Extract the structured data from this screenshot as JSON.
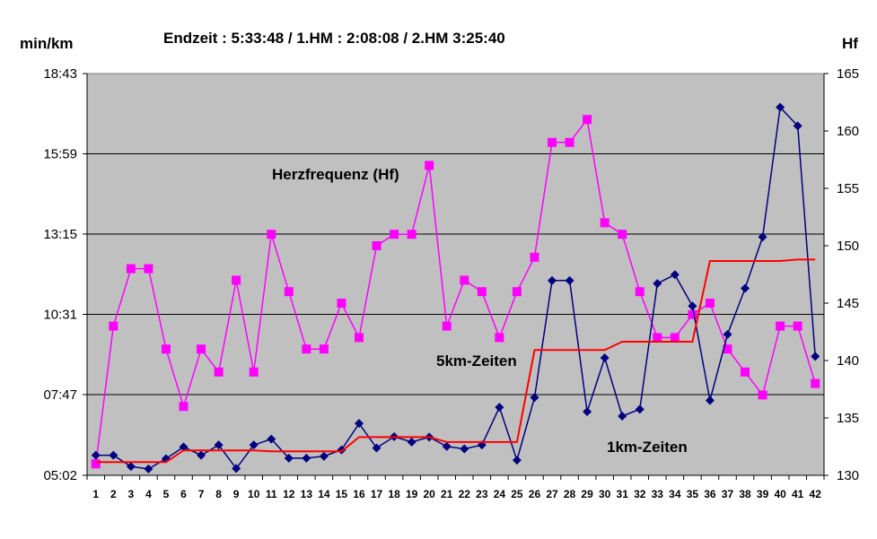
{
  "chart_data": {
    "type": "line",
    "title": "Endzeit : 5:33:48  / 1.HM : 2:08:08  / 2.HM  3:25:40",
    "ylabel_left": "min/km",
    "ylabel_right": "Hf",
    "x": [
      1,
      2,
      3,
      4,
      5,
      6,
      7,
      8,
      9,
      10,
      11,
      12,
      13,
      14,
      15,
      16,
      17,
      18,
      19,
      20,
      21,
      22,
      23,
      24,
      25,
      26,
      27,
      28,
      29,
      30,
      31,
      32,
      33,
      34,
      35,
      36,
      37,
      38,
      39,
      40,
      41,
      42
    ],
    "x_tick_labels": [
      "1",
      "2",
      "3",
      "4",
      "5",
      "6",
      "7",
      "8",
      "9",
      "10",
      "11",
      "12",
      "13",
      "14",
      "15",
      "16",
      "17",
      "18",
      "19",
      "20",
      "21",
      "22",
      "23",
      "24",
      "25",
      "26",
      "27",
      "28",
      "29",
      "30",
      "31",
      "32",
      "33",
      "34",
      "35",
      "36",
      "37",
      "38",
      "39",
      "40",
      "41",
      "42"
    ],
    "y_left": {
      "min_seconds": 302,
      "max_seconds": 1123,
      "tick_seconds": [
        302,
        467,
        631,
        795,
        959,
        1123
      ],
      "tick_labels": [
        "05:02",
        "07:47",
        "10:31",
        "13:15",
        "15:59",
        "18:43"
      ]
    },
    "y_right": {
      "min": 130,
      "max": 165,
      "ticks": [
        130,
        135,
        140,
        145,
        150,
        155,
        160,
        165
      ],
      "tick_labels": [
        "130",
        "135",
        "140",
        "145",
        "150",
        "155",
        "160",
        "165"
      ]
    },
    "grid": "horizontal",
    "series": [
      {
        "name": "Herzfrequenz (Hf)",
        "axis": "right",
        "color": "#ff00ff",
        "marker": "square",
        "values": [
          131,
          143,
          148,
          148,
          141,
          136,
          141,
          139,
          147,
          139,
          151,
          146,
          141,
          141,
          145,
          142,
          150,
          151,
          151,
          157,
          143,
          147,
          146,
          142,
          146,
          149,
          159,
          159,
          161,
          152,
          151,
          146,
          142,
          142,
          144,
          145,
          141,
          139,
          137,
          143,
          143,
          138
        ]
      },
      {
        "name": "1km-Zeiten",
        "axis": "left",
        "unit": "seconds per km",
        "color": "#000080",
        "marker": "diamond",
        "values": [
          343,
          343,
          320,
          315,
          336,
          360,
          343,
          364,
          316,
          364,
          376,
          337,
          337,
          341,
          354,
          408,
          358,
          381,
          370,
          380,
          361,
          356,
          364,
          441,
          333,
          461,
          700,
          700,
          432,
          542,
          423,
          437,
          694,
          712,
          648,
          455,
          590,
          684,
          789,
          1054,
          1016,
          545
        ]
      },
      {
        "name": "5km-Zeiten",
        "axis": "left",
        "unit": "seconds per km",
        "color": "#ff0000",
        "marker": "none",
        "values": [
          329,
          329,
          329,
          329,
          329,
          353,
          353,
          353,
          353,
          353,
          351,
          351,
          351,
          351,
          351,
          380,
          380,
          380,
          380,
          380,
          370,
          370,
          370,
          370,
          370,
          558,
          558,
          558,
          558,
          558,
          575,
          575,
          575,
          575,
          575,
          740,
          740,
          740,
          740,
          740,
          743,
          743
        ]
      }
    ],
    "annotations": [
      "Herzfrequenz (Hf)",
      "5km-Zeiten",
      "1km-Zeiten"
    ]
  }
}
